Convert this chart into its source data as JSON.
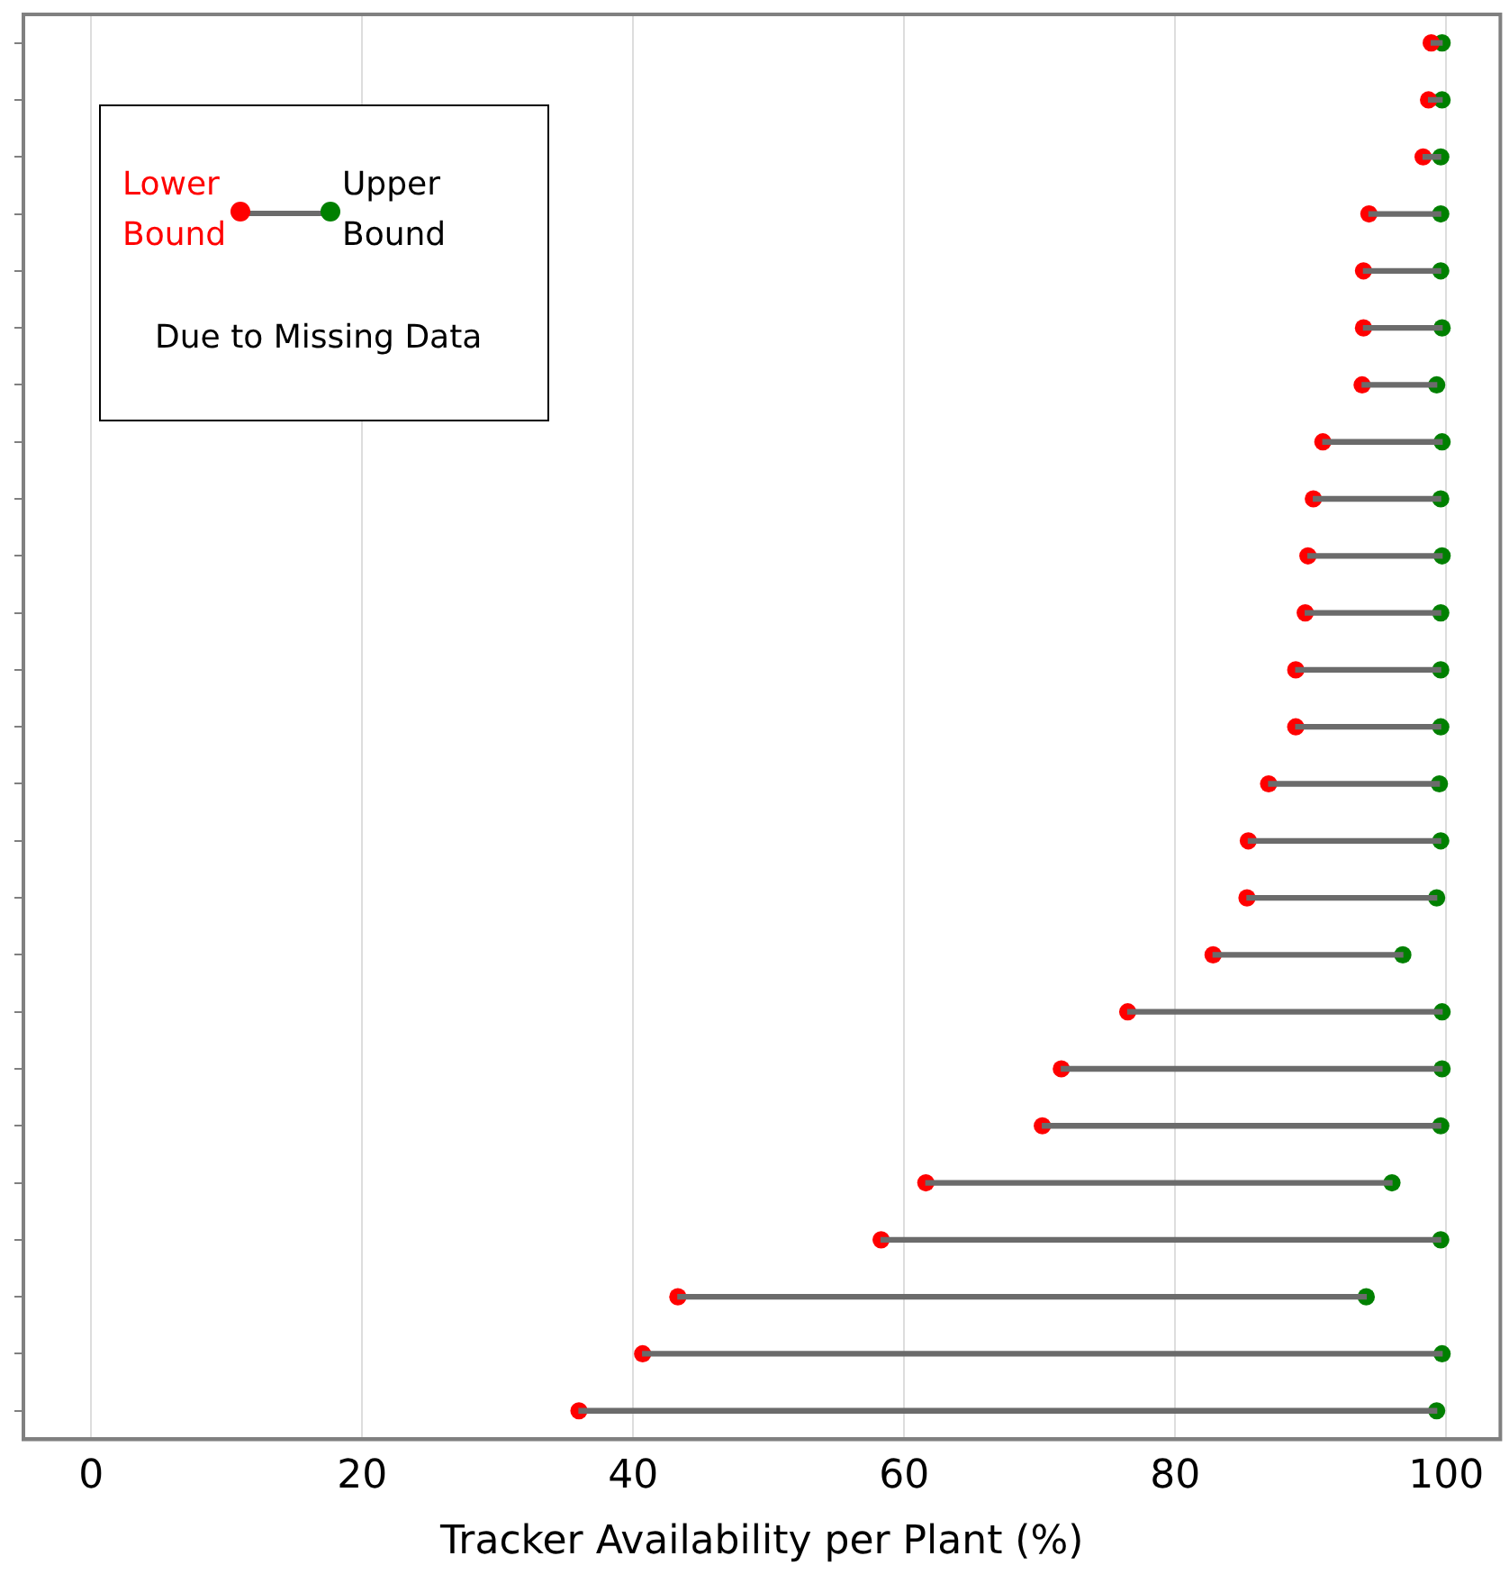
{
  "chart_data": {
    "type": "bar",
    "orientation": "horizontal",
    "xlabel": "Tracker Availability per Plant (%)",
    "categories": [
      null,
      null,
      null,
      null,
      null,
      null,
      null,
      null,
      null,
      null,
      null,
      null,
      null,
      null,
      null,
      null,
      null,
      null,
      null,
      null,
      null,
      null,
      null,
      null,
      null
    ],
    "series": [
      {
        "type": "bar",
        "color": "#6b6b6b",
        "base": [
          98.9,
          98.7,
          98.3,
          94.3,
          93.9,
          93.9,
          93.8,
          90.9,
          90.2,
          89.8,
          89.6,
          88.9,
          88.9,
          86.9,
          85.4,
          85.3,
          82.8,
          76.5,
          71.6,
          70.2,
          61.6,
          58.3,
          43.3,
          40.7,
          36.0
        ],
        "values": [
          0.8,
          1.0,
          1.3,
          5.3,
          5.7,
          5.8,
          5.5,
          8.8,
          9.4,
          9.9,
          10.0,
          10.7,
          10.7,
          12.6,
          14.2,
          14.0,
          14.0,
          23.2,
          28.1,
          29.4,
          34.4,
          41.3,
          50.8,
          59.0,
          63.3
        ]
      },
      {
        "type": "scatter",
        "name": "Lower Bound",
        "color": "#ff0000",
        "values": [
          98.9,
          98.7,
          98.3,
          94.3,
          93.9,
          93.9,
          93.8,
          90.9,
          90.2,
          89.8,
          89.6,
          88.9,
          88.9,
          86.9,
          85.4,
          85.3,
          82.8,
          76.5,
          71.6,
          70.2,
          61.6,
          58.3,
          43.3,
          40.7,
          36.0
        ]
      },
      {
        "type": "scatter",
        "name": "Upper Bound",
        "color": "#008000",
        "values": [
          99.7,
          99.7,
          99.6,
          99.6,
          99.6,
          99.7,
          99.3,
          99.7,
          99.6,
          99.7,
          99.6,
          99.6,
          99.6,
          99.5,
          99.6,
          99.3,
          96.8,
          99.7,
          99.7,
          99.6,
          96.0,
          99.6,
          94.1,
          99.7,
          99.3
        ]
      }
    ],
    "xlim": [
      -5,
      104
    ],
    "xticks": [
      0,
      20,
      40,
      60,
      80,
      100
    ],
    "grid": "x",
    "legend": "top left",
    "tick_labels": "x",
    "marker": "circle",
    "annotations": [
      "Due to Missing Data"
    ]
  }
}
